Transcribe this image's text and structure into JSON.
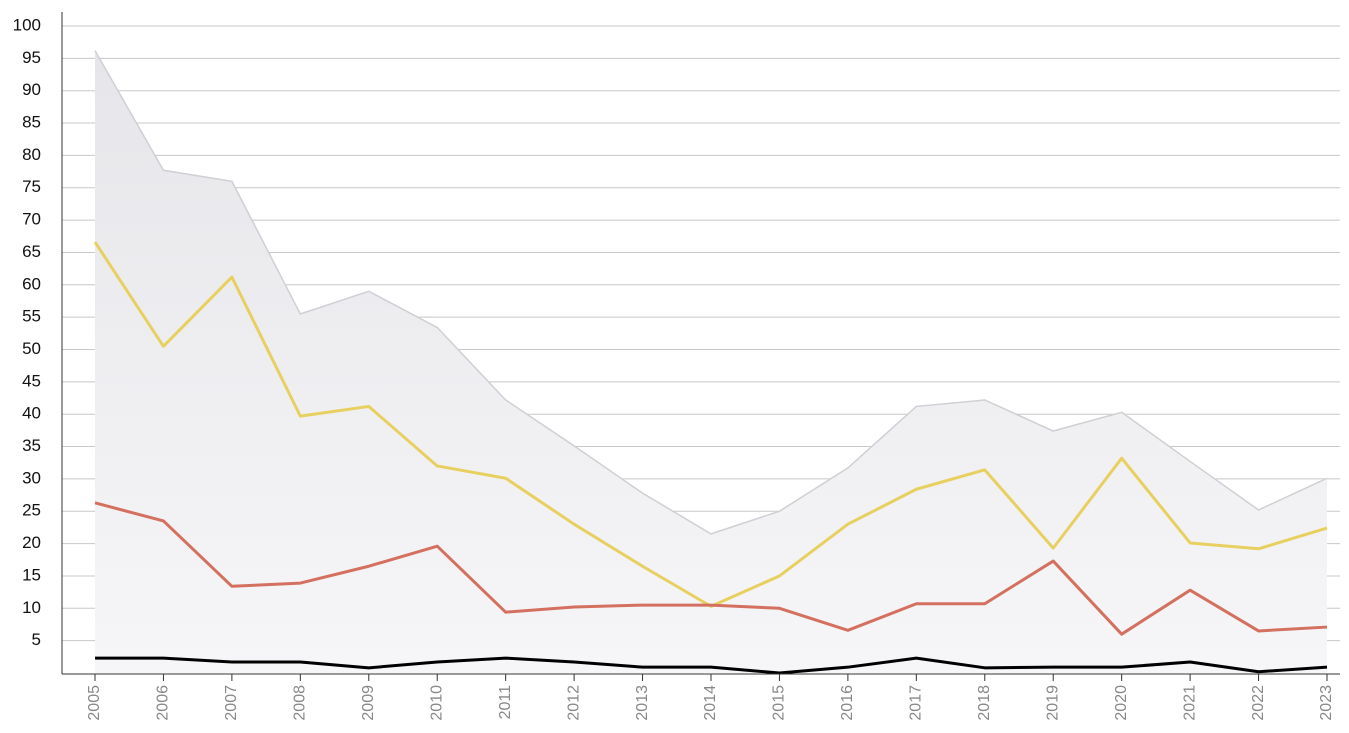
{
  "chart_data": {
    "type": "line",
    "categories": [
      "2005",
      "2006",
      "2007",
      "2008",
      "2009",
      "2010",
      "2011",
      "2012",
      "2013",
      "2014",
      "2015",
      "2016",
      "2017",
      "2018",
      "2019",
      "2020",
      "2021",
      "2022",
      "2023"
    ],
    "series": [
      {
        "color": "#cfcfd4",
        "area": true,
        "values": [
          96.2,
          77.7,
          76.0,
          55.5,
          59.0,
          53.4,
          42.2,
          35.1,
          27.8,
          21.5,
          25.0,
          31.7,
          41.2,
          42.2,
          37.4,
          40.3,
          32.7,
          25.2,
          30.1
        ]
      },
      {
        "color": "#e8d060",
        "values": [
          66.6,
          50.5,
          61.2,
          39.7,
          41.2,
          32.0,
          30.1,
          23.0,
          16.5,
          10.3,
          15.0,
          23.0,
          28.4,
          31.4,
          19.3,
          33.2,
          20.1,
          19.2,
          22.4
        ]
      },
      {
        "color": "#d4705f",
        "values": [
          26.3,
          23.5,
          13.4,
          13.9,
          16.5,
          19.6,
          9.4,
          10.2,
          10.5,
          10.5,
          10.0,
          6.6,
          10.7,
          10.7,
          17.3,
          6.0,
          12.8,
          6.5,
          7.1
        ]
      },
      {
        "color": "#000000",
        "values": [
          2.3,
          2.3,
          1.7,
          1.7,
          0.8,
          1.7,
          2.3,
          1.7,
          0.9,
          0.9,
          0,
          0.9,
          2.3,
          0.8,
          0.9,
          0.9,
          1.7,
          0.2,
          0.9
        ]
      }
    ],
    "ylim": [
      0,
      100
    ],
    "yticks": [
      5,
      10,
      15,
      20,
      25,
      30,
      35,
      40,
      45,
      50,
      55,
      60,
      65,
      70,
      75,
      80,
      85,
      90,
      95,
      100
    ],
    "grid": true
  }
}
